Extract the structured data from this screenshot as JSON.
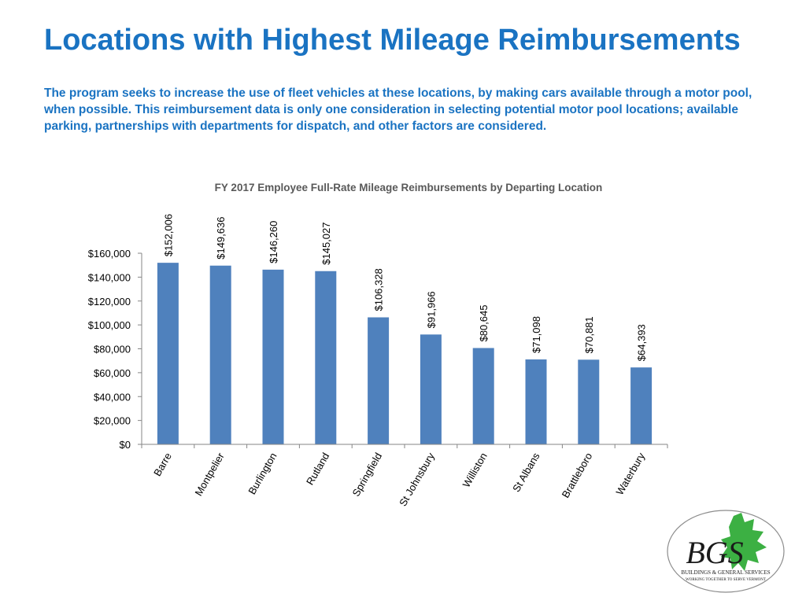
{
  "header": {
    "title": "Locations with Highest Mileage Reimbursements",
    "subtitle": "The program seeks to increase the use of fleet vehicles at these locations, by making cars available through a motor pool, when possible.  This reimbursement data is only one consideration in selecting potential motor pool locations; available parking, partnerships with departments for dispatch, and other factors are considered."
  },
  "chart_data": {
    "type": "bar",
    "title": "FY 2017 Employee Full-Rate Mileage Reimbursements by Departing Location",
    "categories": [
      "Barre",
      "Montpelier",
      "Burlington",
      "Rutland",
      "Springfield",
      "St Johnsbury",
      "Williston",
      "St Albans",
      "Brattleboro",
      "Waterbury"
    ],
    "values": [
      152006,
      149636,
      146260,
      145027,
      106328,
      91966,
      80645,
      71098,
      70881,
      64393
    ],
    "data_labels": [
      "$152,006",
      "$149,636",
      "$146,260",
      "$145,027",
      "$106,328",
      "$91,966",
      "$80,645",
      "$71,098",
      "$70,881",
      "$64,393"
    ],
    "yticks": [
      0,
      20000,
      40000,
      60000,
      80000,
      100000,
      120000,
      140000,
      160000
    ],
    "ytick_labels": [
      "$0",
      "$20,000",
      "$40,000",
      "$60,000",
      "$80,000",
      "$100,000",
      "$120,000",
      "$140,000",
      "$160,000"
    ],
    "ylim": [
      0,
      160000
    ],
    "bar_color": "#4f81bd",
    "grid": false,
    "legend": "none"
  },
  "logo": {
    "monogram": "BGS",
    "line1": "BUILDINGS & GENERAL SERVICES",
    "line2": "WORKING TOGETHER TO SERVE VERMONT",
    "leaf_color": "#3cb043"
  }
}
